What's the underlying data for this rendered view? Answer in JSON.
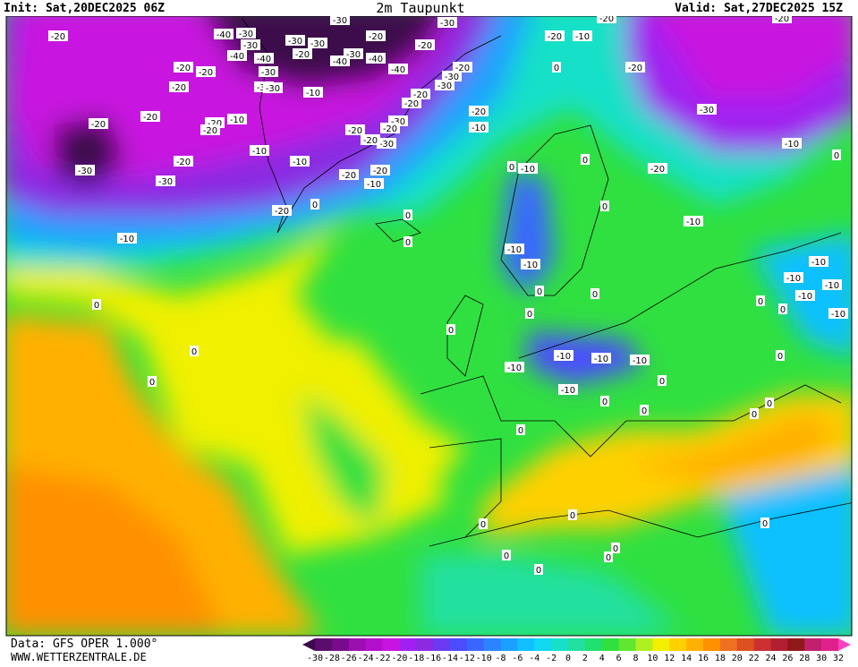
{
  "header": {
    "init": "Init: Sat,20DEC2025 06Z",
    "title": "2m Taupunkt",
    "valid": "Valid: Sat,27DEC2025 15Z"
  },
  "footer": {
    "source": "Data: GFS OPER 1.000°",
    "website": "WWW.WETTERZENTRALE.DE"
  },
  "colorbar": {
    "ticks": [
      -30,
      -28,
      -26,
      -24,
      -22,
      -20,
      -18,
      -16,
      -14,
      -12,
      -10,
      -8,
      -6,
      -4,
      -2,
      0,
      2,
      4,
      6,
      8,
      10,
      12,
      14,
      16,
      18,
      20,
      22,
      24,
      26,
      28,
      30,
      32
    ],
    "colors": [
      "#3c0a4c",
      "#5a0d6c",
      "#7a0a8c",
      "#9b0fb0",
      "#b40fcc",
      "#c814e0",
      "#a020f0",
      "#8a2be2",
      "#6a3bf0",
      "#4b4bff",
      "#3a66ff",
      "#2a84ff",
      "#1aa0ff",
      "#10c0ff",
      "#10d8f0",
      "#18e0c8",
      "#20e0a0",
      "#20e070",
      "#30e040",
      "#60e830",
      "#b0f020",
      "#f0f000",
      "#ffd000",
      "#ffb000",
      "#ff9000",
      "#ee7020",
      "#dd5020",
      "#cc3030",
      "#b02030",
      "#901818",
      "#c0206c",
      "#e0208c",
      "#ff40c0"
    ]
  },
  "map": {
    "contour_labels": [
      -20,
      -20,
      -20,
      -20,
      -20,
      -20,
      -20,
      -20,
      -10,
      -20,
      -30,
      -30,
      -10,
      -10,
      -20,
      0,
      -10,
      0,
      -40,
      -30,
      -30,
      -40,
      -40,
      -30,
      -30,
      -30,
      -30,
      -30,
      -30,
      -20,
      -10,
      -30,
      -40,
      -40,
      -40,
      -20,
      -20,
      -30,
      -20,
      -30,
      -30,
      -20,
      -20,
      -30,
      -20,
      -30,
      -20,
      -20,
      -20,
      -20,
      -10,
      -20,
      -10,
      -20,
      -10,
      -20,
      0,
      -20,
      -30,
      -20,
      -10,
      -10,
      0,
      -20,
      -10,
      0,
      0,
      0,
      0,
      0,
      -10,
      -10,
      0,
      0,
      0,
      -10,
      -10,
      -10,
      -10,
      -10,
      0,
      0,
      0,
      -10,
      -10,
      -10,
      -10,
      0,
      -10,
      0,
      0,
      0,
      0,
      0,
      0,
      0,
      0,
      0,
      0,
      0,
      0,
      0,
      0,
      0
    ]
  }
}
